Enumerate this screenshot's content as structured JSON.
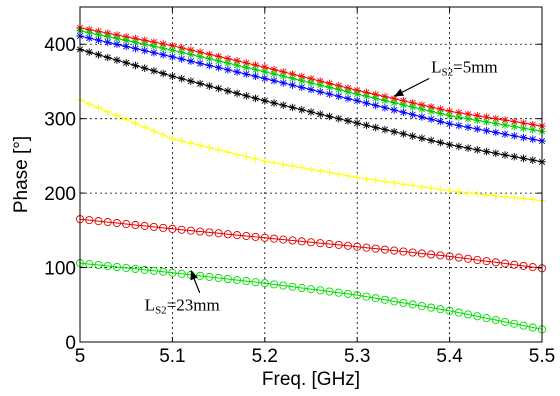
{
  "chart_data": {
    "type": "line",
    "title": "",
    "xlabel": "Freq. [GHz]",
    "ylabel": "Phase [°]",
    "xlim": [
      5,
      5.5
    ],
    "ylim": [
      0,
      450
    ],
    "xticks": [
      "5",
      "5.1",
      "5.2",
      "5.3",
      "5.4",
      "5.5"
    ],
    "yticks": [
      "0",
      "100",
      "200",
      "300",
      "400"
    ],
    "grid": "on (dotted)",
    "legend": "none",
    "x": [
      5.0,
      5.1,
      5.2,
      5.3,
      5.4,
      5.5
    ],
    "series": [
      {
        "color": "#ff0000",
        "marker": "asterisk",
        "values": [
          422,
          398,
          369,
          338,
          310,
          290
        ]
      },
      {
        "color": "#00cc00",
        "marker": "asterisk",
        "values": [
          418,
          392,
          363,
          333,
          304,
          283
        ]
      },
      {
        "color": "#0000ff",
        "marker": "asterisk",
        "values": [
          411,
          383,
          354,
          324,
          293,
          270
        ]
      },
      {
        "color": "#000000",
        "marker": "asterisk",
        "values": [
          393,
          357,
          324,
          294,
          265,
          242
        ]
      },
      {
        "color": "#ffff00",
        "marker": "plus",
        "values": [
          325,
          273,
          243,
          221,
          203,
          190
        ]
      },
      {
        "color": "#e00000",
        "marker": "circle",
        "values": [
          165,
          152,
          140,
          128,
          115,
          99
        ]
      },
      {
        "color": "#00dd00",
        "marker": "circle",
        "values": [
          106,
          93,
          79,
          63,
          42,
          17
        ]
      }
    ],
    "annotations": [
      {
        "main": "L",
        "sub": "S2",
        "rest": "=5mm",
        "x": 5.38,
        "y": 362,
        "arrow_to": [
          5.34,
          330
        ]
      },
      {
        "main": "L",
        "sub": "S2",
        "rest": "=23mm",
        "x": 5.07,
        "y": 42,
        "arrow_to": [
          5.12,
          96
        ]
      }
    ]
  }
}
